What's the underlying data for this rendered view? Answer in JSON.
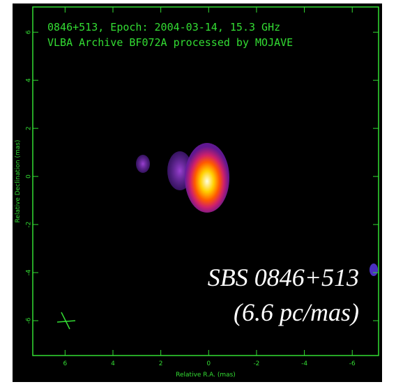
{
  "chart_data": {
    "type": "image",
    "title_lines": [
      "0846+513, Epoch: 2004-03-14, 15.3 GHz",
      "VLBA Archive BF072A processed by MOJAVE"
    ],
    "xlabel": "Relative R.A. (mas)",
    "ylabel": "Relative Declination (mas)",
    "xlim": [
      7.35,
      -7.1
    ],
    "xticks": [
      6,
      4,
      2,
      0,
      -2,
      -4,
      -6
    ],
    "ylim": [
      -7.45,
      7.05
    ],
    "yticks": [
      6,
      4,
      2,
      0,
      -2,
      -4,
      -6
    ],
    "annotations": [
      "SBS 0846+513",
      "(6.6 pc/mas)"
    ],
    "color": "#33dd33"
  }
}
